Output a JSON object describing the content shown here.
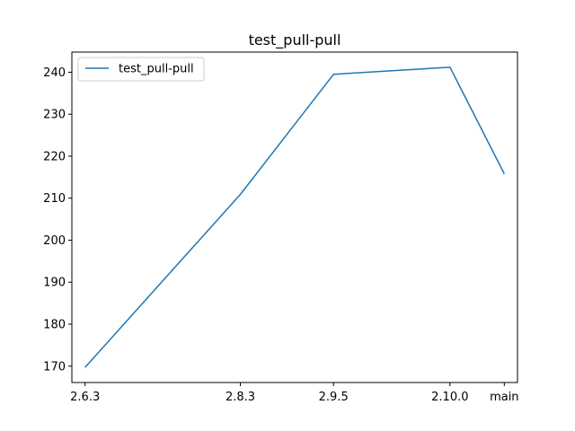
{
  "chart_data": {
    "type": "line",
    "title": "test_pull-pull",
    "xlabel": "",
    "ylabel": "",
    "categories": [
      "2.6.3",
      "2.8.3",
      "2.9.5",
      "2.10.0",
      "main"
    ],
    "x": [
      263,
      283,
      295,
      310,
      317
    ],
    "series": [
      {
        "name": "test_pull-pull",
        "values": [
          169.7,
          210.9,
          239.5,
          241.2,
          215.8
        ],
        "color": "#1f77b4"
      }
    ],
    "yticks": [
      170,
      180,
      190,
      200,
      210,
      220,
      230,
      240
    ],
    "xlim": [
      261.3,
      318.7
    ],
    "ylim": [
      166.1,
      244.8
    ],
    "legend": "upper-left",
    "grid": false
  }
}
